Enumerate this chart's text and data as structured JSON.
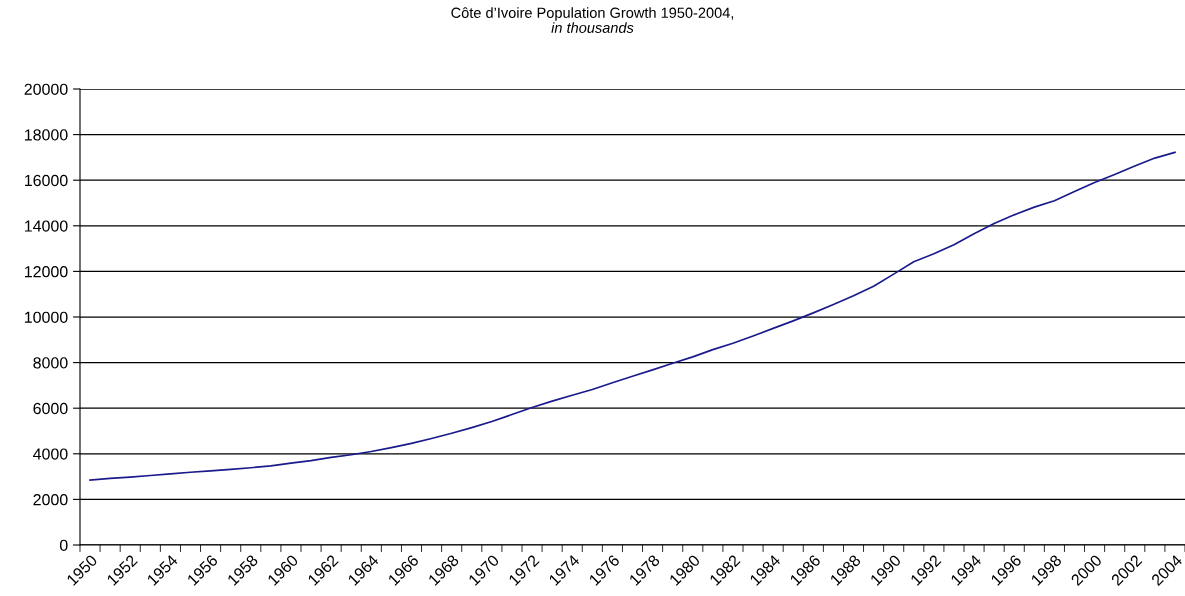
{
  "chart_data": {
    "type": "line",
    "title": "Côte d’Ivoire Population Growth 1950-2004,",
    "subtitle": "in thousands",
    "categories": [
      "1950",
      null,
      "1952",
      null,
      "1954",
      null,
      "1956",
      null,
      "1958",
      null,
      "1960",
      null,
      "1962",
      null,
      "1964",
      null,
      "1966",
      null,
      "1968",
      null,
      "1970",
      null,
      "1972",
      null,
      "1974",
      null,
      "1976",
      null,
      "1978",
      null,
      "1980",
      null,
      "1982",
      null,
      "1984",
      null,
      "1986",
      null,
      "1988",
      null,
      "1990",
      null,
      "1992",
      null,
      "1994",
      null,
      "1996",
      null,
      "1998",
      null,
      "2000",
      null,
      "2002",
      null,
      "2004"
    ],
    "series": [
      {
        "color": "#1a1a8c",
        "values": [
          2850,
          2920,
          2980,
          3050,
          3120,
          3190,
          3250,
          3320,
          3390,
          3470,
          3590,
          3700,
          3840,
          3960,
          4100,
          4270,
          4460,
          4670,
          4900,
          5150,
          5420,
          5720,
          6030,
          6310,
          6570,
          6820,
          7120,
          7400,
          7680,
          7970,
          8250,
          8570,
          8850,
          9170,
          9500,
          9830,
          10180,
          10550,
          10930,
          11350,
          11880,
          12420,
          12770,
          13170,
          13650,
          14100,
          14480,
          14820,
          15100,
          15500,
          15900,
          16250,
          16620,
          16970,
          17220
        ]
      }
    ],
    "ylim": [
      0,
      20000
    ],
    "yticks": [
      0,
      2000,
      4000,
      6000,
      8000,
      10000,
      12000,
      14000,
      16000,
      18000,
      20000
    ],
    "grid": "y",
    "marker": "none",
    "line_style": "solid"
  }
}
